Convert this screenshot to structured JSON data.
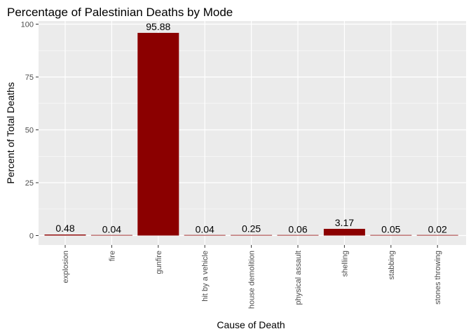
{
  "chart_data": {
    "type": "bar",
    "title": "Percentage of Palestinian Deaths by Mode",
    "xlabel": "Cause of Death",
    "ylabel": "Percent of Total Deaths",
    "categories": [
      "explosion",
      "fire",
      "gunfire",
      "hit by a vehicle",
      "house demolition",
      "physical assault",
      "shelling",
      "stabbing",
      "stones throwing"
    ],
    "values": [
      0.48,
      0.04,
      95.88,
      0.04,
      0.25,
      0.06,
      3.17,
      0.05,
      0.02
    ],
    "data_labels": [
      "0.48",
      "0.04",
      "95.88",
      "0.04",
      "0.25",
      "0.06",
      "3.17",
      "0.05",
      "0.02"
    ],
    "ylim": [
      0,
      100
    ],
    "yticks": [
      0,
      25,
      50,
      75,
      100
    ],
    "grid": true,
    "legend": "none",
    "colors": {
      "bar": "#8B0000",
      "panel": "#EBEBEB",
      "grid": "#FFFFFF"
    }
  }
}
